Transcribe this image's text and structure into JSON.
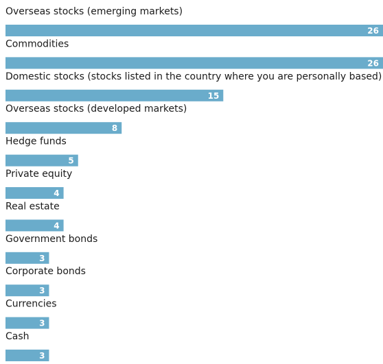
{
  "chart_data": {
    "type": "bar",
    "orientation": "horizontal",
    "categories": [
      "Overseas stocks (emerging markets)",
      "Commodities",
      "Domestic stocks (stocks listed in the country where you are personally based)",
      "Overseas stocks (developed markets)",
      "Hedge funds",
      "Private equity",
      "Real estate",
      "Government bonds",
      "Corporate bonds",
      "Currencies",
      "Cash"
    ],
    "values": [
      26,
      26,
      15,
      8,
      5,
      4,
      4,
      3,
      3,
      3,
      3
    ],
    "color": "#6aaccb"
  }
}
